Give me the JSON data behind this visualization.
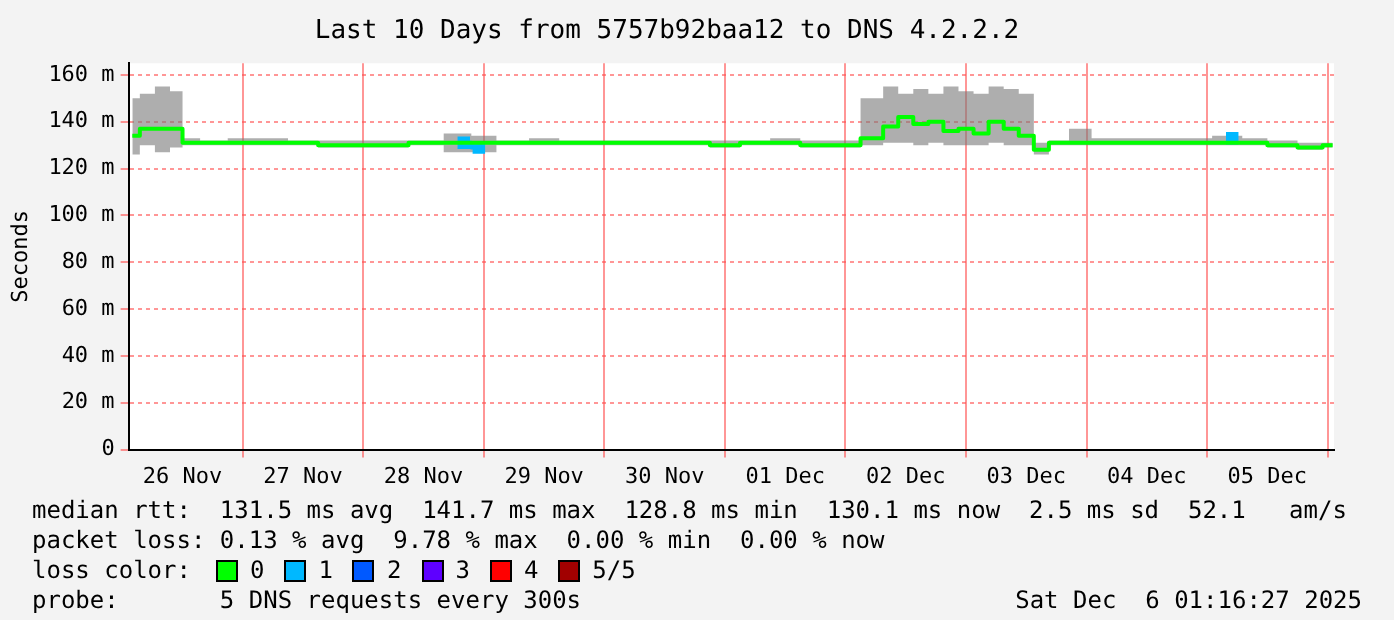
{
  "chart_data": {
    "type": "line",
    "title": "Last 10 Days from 5757b92baa12 to DNS 4.2.2.2",
    "ylabel": "Seconds",
    "x": [
      "2025-11-26T02:00",
      "2025-11-26T05:00",
      "2025-11-26T08:00",
      "2025-11-26T11:00",
      "2025-11-26T13:00",
      "2025-11-26T18:00",
      "2025-11-27T00:00",
      "2025-11-27T06:00",
      "2025-11-27T12:00",
      "2025-11-27T18:00",
      "2025-11-28T00:00",
      "2025-11-28T06:00",
      "2025-11-28T12:00",
      "2025-11-28T20:00",
      "2025-11-28T23:00",
      "2025-11-29T06:00",
      "2025-11-29T12:00",
      "2025-11-29T18:00",
      "2025-11-30T00:00",
      "2025-11-30T06:00",
      "2025-11-30T12:00",
      "2025-11-30T18:00",
      "2025-12-01T00:00",
      "2025-12-01T06:00",
      "2025-12-01T12:00",
      "2025-12-01T18:00",
      "2025-12-02T00:00",
      "2025-12-02T06:00",
      "2025-12-02T09:00",
      "2025-12-02T12:00",
      "2025-12-02T15:00",
      "2025-12-02T18:00",
      "2025-12-02T21:00",
      "2025-12-03T00:00",
      "2025-12-03T03:00",
      "2025-12-03T06:00",
      "2025-12-03T09:00",
      "2025-12-03T12:00",
      "2025-12-03T15:00",
      "2025-12-03T18:00",
      "2025-12-03T23:00",
      "2025-12-04T03:00",
      "2025-12-04T09:00",
      "2025-12-04T15:00",
      "2025-12-04T21:00",
      "2025-12-05T05:00",
      "2025-12-05T09:00",
      "2025-12-05T15:00",
      "2025-12-05T21:00",
      "2025-12-06T01:00"
    ],
    "series": [
      {
        "name": "0",
        "color": "#00ff00",
        "values": [
          134,
          137,
          137,
          137,
          131,
          131,
          131,
          131,
          131,
          130,
          130,
          130,
          131,
          null,
          null,
          131,
          131,
          131,
          131,
          131,
          131,
          131,
          130,
          131,
          131,
          130,
          130,
          133,
          138,
          142,
          139,
          140,
          136,
          137,
          135,
          140,
          137,
          134,
          128,
          131,
          131,
          131,
          131,
          131,
          131,
          null,
          131,
          130,
          129,
          130
        ],
        "lower": [
          126,
          130,
          127,
          129,
          130,
          130,
          130,
          130,
          130,
          129,
          129,
          129,
          130,
          127,
          127,
          130,
          130,
          130,
          130,
          130,
          130,
          130,
          129,
          130,
          130,
          129,
          129,
          130,
          131,
          131,
          130,
          131,
          130,
          130,
          130,
          131,
          130,
          130,
          126,
          130,
          130,
          130,
          130,
          130,
          130,
          130,
          130,
          129,
          128,
          129
        ],
        "upper": [
          150,
          152,
          155,
          153,
          133,
          132,
          133,
          133,
          132,
          132,
          132,
          132,
          132,
          135,
          134,
          132,
          133,
          132,
          132,
          132,
          132,
          132,
          132,
          132,
          133,
          132,
          132,
          150,
          155,
          152,
          154,
          152,
          155,
          153,
          152,
          155,
          154,
          152,
          131,
          132,
          137,
          133,
          133,
          133,
          133,
          134,
          133,
          132,
          131,
          131
        ]
      },
      {
        "name": "1",
        "color": "#00b8ff",
        "marker": "square",
        "values": [
          null,
          null,
          null,
          null,
          null,
          null,
          null,
          null,
          null,
          null,
          null,
          null,
          null,
          131,
          129,
          null,
          null,
          null,
          null,
          null,
          null,
          null,
          null,
          null,
          null,
          null,
          null,
          null,
          null,
          null,
          null,
          null,
          null,
          null,
          null,
          null,
          null,
          null,
          null,
          null,
          null,
          null,
          null,
          null,
          null,
          133,
          null,
          null,
          null,
          null
        ]
      },
      {
        "name": "2",
        "color": "#0059ff",
        "values": [
          null,
          null,
          null,
          null,
          null,
          null,
          null,
          null,
          null,
          null,
          null,
          null,
          null,
          null,
          null,
          null,
          null,
          null,
          null,
          null,
          null,
          null,
          null,
          null,
          null,
          null,
          null,
          null,
          null,
          null,
          null,
          null,
          null,
          null,
          null,
          null,
          null,
          null,
          null,
          null,
          null,
          null,
          null,
          null,
          null,
          null,
          null,
          null,
          null,
          null
        ]
      },
      {
        "name": "3",
        "color": "#5e00ff",
        "values": [
          null,
          null,
          null,
          null,
          null,
          null,
          null,
          null,
          null,
          null,
          null,
          null,
          null,
          null,
          null,
          null,
          null,
          null,
          null,
          null,
          null,
          null,
          null,
          null,
          null,
          null,
          null,
          null,
          null,
          null,
          null,
          null,
          null,
          null,
          null,
          null,
          null,
          null,
          null,
          null,
          null,
          null,
          null,
          null,
          null,
          null,
          null,
          null,
          null,
          null
        ]
      },
      {
        "name": "4",
        "color": "#ff0000",
        "values": [
          null,
          null,
          null,
          null,
          null,
          null,
          null,
          null,
          null,
          null,
          null,
          null,
          null,
          null,
          null,
          null,
          null,
          null,
          null,
          null,
          null,
          null,
          null,
          null,
          null,
          null,
          null,
          null,
          null,
          null,
          null,
          null,
          null,
          null,
          null,
          null,
          null,
          null,
          null,
          null,
          null,
          null,
          null,
          null,
          null,
          null,
          null,
          null,
          null,
          null
        ]
      },
      {
        "name": "5/5",
        "color": "#a10000",
        "values": [
          null,
          null,
          null,
          null,
          null,
          null,
          null,
          null,
          null,
          null,
          null,
          null,
          null,
          null,
          null,
          null,
          null,
          null,
          null,
          null,
          null,
          null,
          null,
          null,
          null,
          null,
          null,
          null,
          null,
          null,
          null,
          null,
          null,
          null,
          null,
          null,
          null,
          null,
          null,
          null,
          null,
          null,
          null,
          null,
          null,
          null,
          null,
          null,
          null,
          null
        ]
      }
    ],
    "xlim": [
      "2025-11-26T01:16",
      "2025-12-06T01:16"
    ],
    "xticks": [
      {
        "value": "2025-11-26T12:00",
        "label": "26 Nov"
      },
      {
        "value": "2025-11-27T00:00",
        "label": null
      },
      {
        "value": "2025-11-27T12:00",
        "label": "27 Nov"
      },
      {
        "value": "2025-11-28T00:00",
        "label": null
      },
      {
        "value": "2025-11-28T12:00",
        "label": "28 Nov"
      },
      {
        "value": "2025-11-29T00:00",
        "label": null
      },
      {
        "value": "2025-11-29T12:00",
        "label": "29 Nov"
      },
      {
        "value": "2025-11-30T00:00",
        "label": null
      },
      {
        "value": "2025-11-30T12:00",
        "label": "30 Nov"
      },
      {
        "value": "2025-12-01T00:00",
        "label": null
      },
      {
        "value": "2025-12-01T12:00",
        "label": "01 Dec"
      },
      {
        "value": "2025-12-02T00:00",
        "label": null
      },
      {
        "value": "2025-12-02T12:00",
        "label": "02 Dec"
      },
      {
        "value": "2025-12-03T00:00",
        "label": null
      },
      {
        "value": "2025-12-03T12:00",
        "label": "03 Dec"
      },
      {
        "value": "2025-12-04T00:00",
        "label": null
      },
      {
        "value": "2025-12-04T12:00",
        "label": "04 Dec"
      },
      {
        "value": "2025-12-05T00:00",
        "label": null
      },
      {
        "value": "2025-12-05T12:00",
        "label": "05 Dec"
      },
      {
        "value": "2025-12-06T00:00",
        "label": null
      }
    ],
    "ylim": [
      0,
      165
    ],
    "yticks": [
      0,
      {
        "value": 20,
        "label": "20 m"
      },
      {
        "value": 40,
        "label": "40 m"
      },
      {
        "value": 60,
        "label": "60 m"
      },
      {
        "value": 80,
        "label": "80 m"
      },
      {
        "value": 100,
        "label": "100 m"
      },
      {
        "value": 120,
        "label": "120 m"
      },
      {
        "value": 140,
        "label": "140 m"
      },
      {
        "value": 160,
        "label": "160 m"
      }
    ],
    "grid": true,
    "legend": "bottom",
    "marker": "none",
    "line_style": "solid",
    "annotations": [
      "median rtt:  131.5 ms avg  141.7 ms max  128.8 ms min  130.1 ms now  2.5 ms sd  52.1   am/s",
      "packet loss: 0.13 % avg  9.78 % max  0.00 % min  0.00 % now",
      "loss color:",
      "probe:       5 DNS requests every 300s",
      "Sat Dec  6 01:16:27 2025"
    ]
  }
}
